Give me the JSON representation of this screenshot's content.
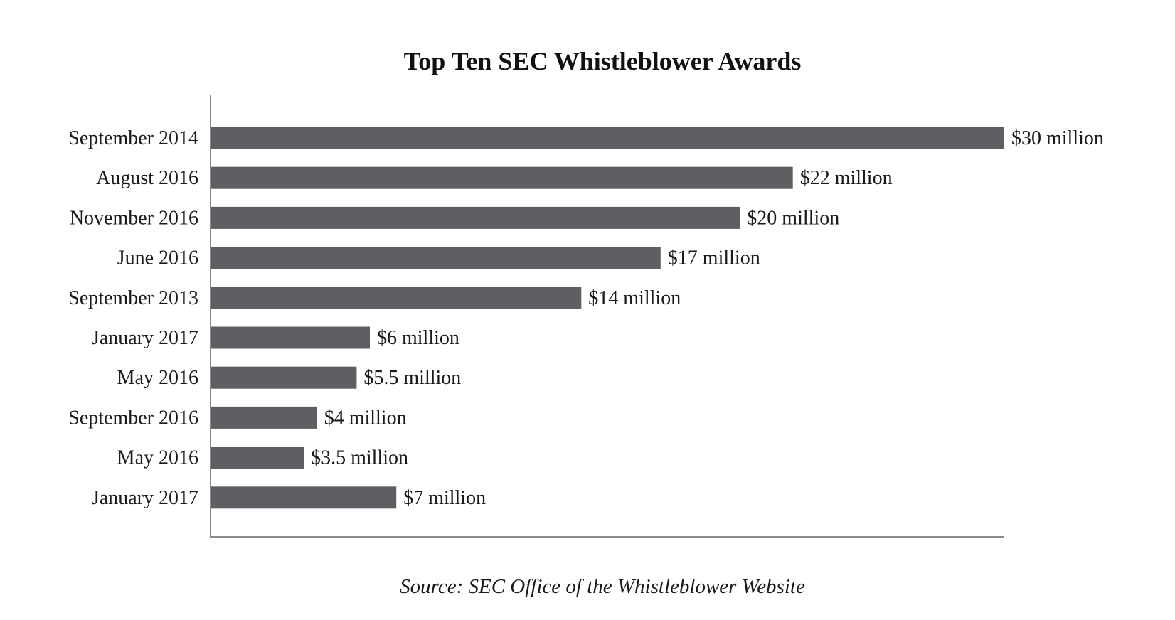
{
  "chart_data": {
    "type": "bar",
    "orientation": "horizontal",
    "title": "Top Ten SEC Whistleblower Awards",
    "source": "Source: SEC Office of the Whistleblower Website",
    "categories": [
      "September 2014",
      "August 2016",
      "November 2016",
      "June 2016",
      "September 2013",
      "January 2017",
      "May 2016",
      "September 2016",
      "May 2016",
      "January 2017"
    ],
    "values": [
      30,
      22,
      20,
      17,
      14,
      6,
      5.5,
      4,
      3.5,
      7
    ],
    "value_labels": [
      "$30 million",
      "$22 million",
      "$20 million",
      "$17 million",
      "$14 million",
      "$6 million",
      "$5.5 million",
      "$4 million",
      "$3.5 million",
      "$7 million"
    ],
    "xlim": [
      0,
      30
    ],
    "grid": false,
    "bar_color": "#5f5e62"
  }
}
